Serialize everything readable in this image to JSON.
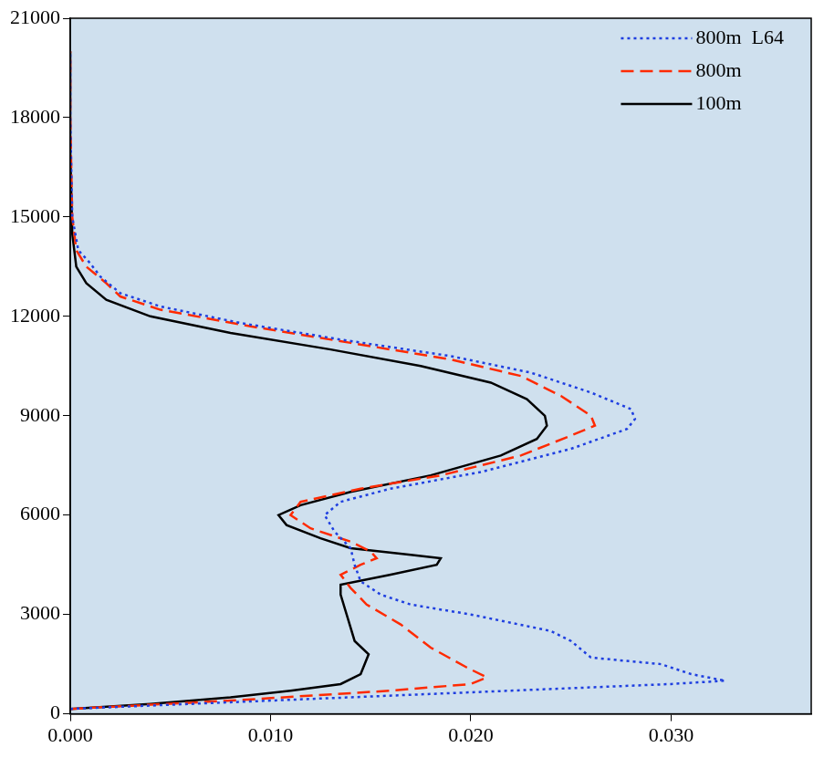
{
  "chart_data": {
    "type": "line",
    "xlim": [
      0,
      0.037
    ],
    "xticks": [
      {
        "value": 0,
        "label": "0.000"
      },
      {
        "value": 0.01,
        "label": "0.010"
      },
      {
        "value": 0.02,
        "label": "0.020"
      },
      {
        "value": 0.03,
        "label": "0.030"
      }
    ],
    "ylim": [
      0,
      21000
    ],
    "yticks": [
      0,
      3000,
      6000,
      9000,
      12000,
      15000,
      18000,
      21000
    ],
    "grid": false,
    "legend": "upper right",
    "series": [
      {
        "name": "800m  L64",
        "color": "#1f3fe0",
        "line_style": "dotted",
        "x": [
          0,
          0.01,
          0.022,
          0.03,
          0.0327,
          0.031,
          0.0295,
          0.026,
          0.025,
          0.024,
          0.02,
          0.017,
          0.0155,
          0.0145,
          0.0142,
          0.014,
          0.0132,
          0.0127,
          0.0135,
          0.016,
          0.0205,
          0.025,
          0.0278,
          0.0282,
          0.028,
          0.026,
          0.023,
          0.019,
          0.0135,
          0.0085,
          0.0045,
          0.0025,
          0.0015,
          0.001,
          0.0004,
          0.0001,
          0,
          0
        ],
        "values": [
          150,
          400,
          700,
          900,
          1000,
          1200,
          1500,
          1700,
          2200,
          2500,
          3000,
          3300,
          3600,
          4000,
          4500,
          5000,
          5500,
          6000,
          6400,
          6800,
          7300,
          8000,
          8600,
          8900,
          9200,
          9700,
          10300,
          10800,
          11300,
          11800,
          12300,
          12700,
          13200,
          13600,
          14000,
          15000,
          18000,
          20000
        ]
      },
      {
        "name": "800m",
        "color": "#ff2a00",
        "line_style": "dashed",
        "x": [
          0,
          0.008,
          0.016,
          0.02,
          0.0208,
          0.0198,
          0.018,
          0.0165,
          0.0148,
          0.014,
          0.0135,
          0.0145,
          0.0153,
          0.015,
          0.014,
          0.012,
          0.011,
          0.0115,
          0.0145,
          0.0185,
          0.0225,
          0.025,
          0.0262,
          0.026,
          0.0245,
          0.0225,
          0.019,
          0.014,
          0.009,
          0.0045,
          0.0025,
          0.0018,
          0.0008,
          0.0003,
          0.0001,
          0,
          0
        ],
        "values": [
          150,
          400,
          700,
          900,
          1100,
          1400,
          2000,
          2700,
          3300,
          3800,
          4200,
          4500,
          4700,
          4900,
          5200,
          5600,
          6000,
          6400,
          6800,
          7200,
          7800,
          8400,
          8700,
          9000,
          9600,
          10200,
          10700,
          11200,
          11700,
          12200,
          12600,
          13000,
          13500,
          14000,
          15000,
          18000,
          20000
        ]
      },
      {
        "name": "100m",
        "color": "#000000",
        "line_style": "solid",
        "x": [
          0,
          0.004,
          0.008,
          0.011,
          0.0135,
          0.0145,
          0.0149,
          0.0142,
          0.0138,
          0.0135,
          0.0135,
          0.016,
          0.0183,
          0.0185,
          0.017,
          0.014,
          0.0125,
          0.0108,
          0.0104,
          0.0115,
          0.014,
          0.018,
          0.0215,
          0.0233,
          0.0238,
          0.0237,
          0.0228,
          0.021,
          0.0175,
          0.013,
          0.008,
          0.004,
          0.0018,
          0.0008,
          0.0003,
          0.0001,
          0,
          0
        ],
        "values": [
          150,
          300,
          500,
          700,
          900,
          1200,
          1800,
          2200,
          3000,
          3600,
          3900,
          4200,
          4500,
          4700,
          4800,
          5000,
          5300,
          5700,
          6000,
          6300,
          6700,
          7200,
          7800,
          8300,
          8700,
          9000,
          9500,
          10000,
          10500,
          11000,
          11500,
          12000,
          12500,
          13000,
          13500,
          14500,
          17000,
          20000
        ]
      }
    ]
  }
}
